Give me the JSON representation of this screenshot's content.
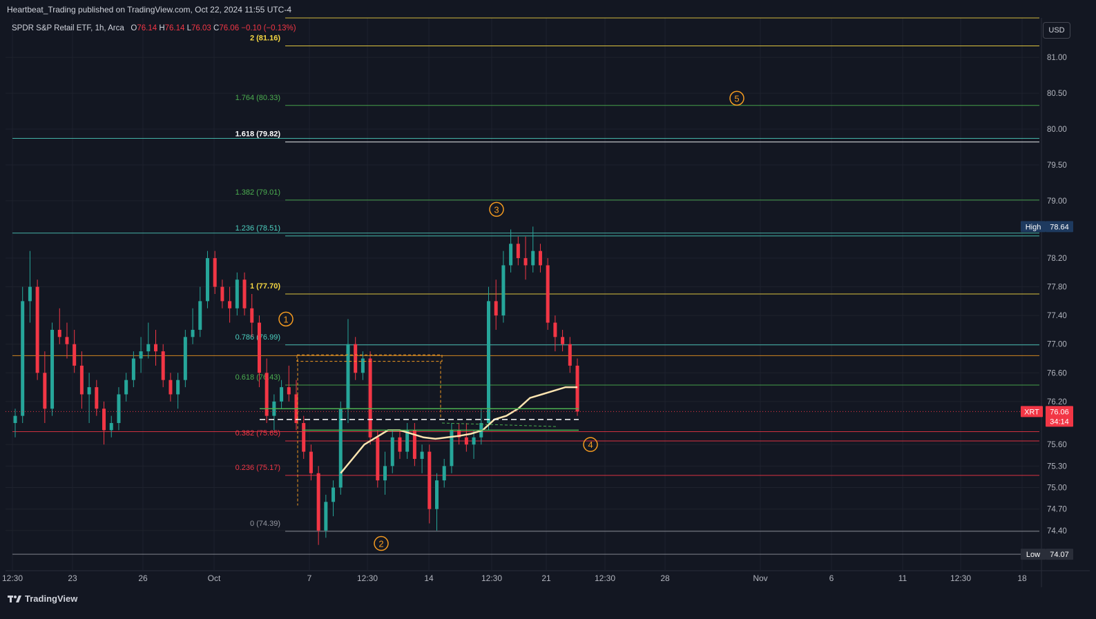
{
  "publication": "Heartbeat_Trading published on TradingView.com, Oct 22, 2024 11:55 UTC-4",
  "legend": {
    "symbol": "SPDR S&P Retail ETF, 1h, Arca",
    "o_label": "O",
    "o_value": "76.14",
    "h_label": "H",
    "h_value": "76.14",
    "l_label": "L",
    "l_value": "76.03",
    "c_label": "C",
    "c_value": "76.06",
    "change": "−0.10 (−0.13%)"
  },
  "currency_button": "USD",
  "footer_brand": "TradingView",
  "colors": {
    "background": "#131722",
    "up": "#26a69a",
    "down": "#f23645",
    "fib_yellow": "#f5d742",
    "fib_green": "#4caf50",
    "fib_teal": "#4dd0c0",
    "fib_red": "#f23645",
    "wave_orange": "#f59b20",
    "ma_cream": "#fce4b0"
  },
  "chart_data": {
    "type": "candlestick",
    "symbol": "XRT",
    "timeframe": "1h",
    "ylim": [
      73.85,
      81.55
    ],
    "y_ticks": [
      "81.00",
      "80.50",
      "80.00",
      "79.50",
      "79.00",
      "78.20",
      "77.80",
      "77.40",
      "77.00",
      "76.60",
      "76.20",
      "75.60",
      "75.30",
      "75.00",
      "74.70",
      "74.40"
    ],
    "x_ticks": [
      "12:30",
      "23",
      "26",
      "Oct",
      "7",
      "12:30",
      "14",
      "12:30",
      "21",
      "12:30",
      "28",
      "Nov",
      "6",
      "11",
      "12:30",
      "18"
    ],
    "fib_levels": [
      {
        "label": "2 (81.16)",
        "value": 81.16,
        "color": "#f5d742",
        "bold": true
      },
      {
        "label": "1.764 (80.33)",
        "value": 80.33,
        "color": "#4caf50",
        "bold": false
      },
      {
        "label": "1.618 (79.82)",
        "value": 79.82,
        "color": "#ffffff",
        "bold": true
      },
      {
        "label": "1.382 (79.01)",
        "value": 79.01,
        "color": "#4caf50",
        "bold": false
      },
      {
        "label": "1.236 (78.51)",
        "value": 78.51,
        "color": "#4dd0c0",
        "bold": false
      },
      {
        "label": "1 (77.70)",
        "value": 77.7,
        "color": "#f5d742",
        "bold": true
      },
      {
        "label": "0.786 (76.99)",
        "value": 76.99,
        "color": "#4dd0c0",
        "bold": false
      },
      {
        "label": "0.618 (76.43)",
        "value": 76.43,
        "color": "#4caf50",
        "bold": false
      },
      {
        "label": "0.382 (75.65)",
        "value": 75.65,
        "color": "#f23645",
        "bold": false
      },
      {
        "label": "0.236 (75.17)",
        "value": 75.17,
        "color": "#f23645",
        "bold": false
      },
      {
        "label": "0 (74.39)",
        "value": 74.39,
        "color": "#9598a1",
        "bold": false
      }
    ],
    "horizontal_lines": [
      {
        "value": 81.55,
        "color": "#f5d742"
      },
      {
        "value": 79.87,
        "color": "#4dd0c0"
      },
      {
        "value": 78.55,
        "color": "#4dd0c0"
      },
      {
        "value": 76.84,
        "color": "#f59b20"
      },
      {
        "value": 75.78,
        "color": "#f23645"
      },
      {
        "value": 74.07,
        "color": "#9598a1"
      }
    ],
    "wave_labels": [
      "1",
      "2",
      "3",
      "4",
      "5"
    ],
    "wave_points": [
      {
        "label": "1",
        "value": 77.35
      },
      {
        "label": "2",
        "value": 74.22
      },
      {
        "label": "3",
        "value": 78.88
      },
      {
        "label": "4",
        "value": 75.6
      },
      {
        "label": "5",
        "value": 80.43
      }
    ],
    "high_label": "High",
    "high_value": "78.64",
    "low_label": "Low",
    "low_value": "74.07",
    "last_symbol": "XRT",
    "last_value": "76.06",
    "last_timer": "34:14",
    "candles": [
      [
        75.9,
        76.1,
        75.7,
        76.0
      ],
      [
        76.0,
        77.8,
        75.9,
        77.6
      ],
      [
        77.6,
        78.3,
        77.3,
        77.8
      ],
      [
        77.8,
        77.9,
        76.5,
        76.6
      ],
      [
        76.6,
        76.9,
        75.9,
        76.1
      ],
      [
        76.1,
        77.3,
        76.0,
        77.2
      ],
      [
        77.2,
        77.5,
        77.0,
        77.1
      ],
      [
        77.1,
        77.3,
        76.8,
        77.0
      ],
      [
        77.0,
        77.2,
        76.6,
        76.7
      ],
      [
        76.7,
        76.9,
        76.1,
        76.3
      ],
      [
        76.3,
        76.6,
        75.9,
        76.4
      ],
      [
        76.4,
        76.5,
        76.0,
        76.1
      ],
      [
        76.1,
        76.2,
        75.6,
        75.8
      ],
      [
        75.8,
        76.0,
        75.7,
        75.9
      ],
      [
        75.9,
        76.4,
        75.8,
        76.3
      ],
      [
        76.3,
        76.6,
        76.2,
        76.5
      ],
      [
        76.5,
        76.9,
        76.4,
        76.8
      ],
      [
        76.8,
        77.1,
        76.6,
        76.9
      ],
      [
        76.9,
        77.3,
        76.8,
        77.0
      ],
      [
        77.0,
        77.2,
        76.7,
        76.9
      ],
      [
        76.9,
        77.0,
        76.4,
        76.5
      ],
      [
        76.5,
        76.6,
        76.2,
        76.3
      ],
      [
        76.3,
        76.6,
        76.1,
        76.5
      ],
      [
        76.5,
        77.2,
        76.4,
        77.1
      ],
      [
        77.1,
        77.5,
        77.0,
        77.2
      ],
      [
        77.2,
        77.8,
        77.1,
        77.6
      ],
      [
        77.6,
        78.3,
        77.5,
        78.2
      ],
      [
        78.2,
        78.3,
        77.7,
        77.8
      ],
      [
        77.8,
        77.9,
        77.5,
        77.6
      ],
      [
        77.6,
        77.8,
        77.3,
        77.5
      ],
      [
        77.5,
        78.0,
        77.4,
        77.9
      ],
      [
        77.9,
        78.0,
        77.4,
        77.5
      ],
      [
        77.5,
        77.7,
        77.1,
        77.3
      ],
      [
        77.3,
        77.4,
        76.4,
        76.6
      ],
      [
        76.6,
        76.8,
        75.9,
        76.0
      ],
      [
        76.0,
        76.3,
        75.8,
        76.2
      ],
      [
        76.2,
        76.5,
        76.1,
        76.4
      ],
      [
        76.4,
        76.7,
        76.2,
        76.3
      ],
      [
        76.3,
        76.5,
        75.8,
        75.9
      ],
      [
        75.9,
        76.0,
        75.4,
        75.5
      ],
      [
        75.5,
        75.6,
        75.1,
        75.2
      ],
      [
        75.2,
        75.3,
        74.2,
        74.4
      ],
      [
        74.4,
        74.9,
        74.3,
        74.8
      ],
      [
        74.8,
        75.1,
        74.6,
        75.0
      ],
      [
        75.0,
        76.2,
        74.9,
        76.1
      ],
      [
        76.1,
        77.35,
        75.9,
        77.0
      ],
      [
        77.0,
        77.1,
        76.5,
        76.6
      ],
      [
        76.6,
        76.9,
        76.5,
        76.8
      ],
      [
        76.8,
        76.9,
        75.6,
        75.7
      ],
      [
        75.7,
        75.8,
        75.0,
        75.1
      ],
      [
        75.1,
        75.5,
        74.9,
        75.3
      ],
      [
        75.3,
        75.8,
        75.2,
        75.7
      ],
      [
        75.7,
        75.8,
        75.4,
        75.5
      ],
      [
        75.5,
        75.9,
        75.4,
        75.8
      ],
      [
        75.8,
        75.9,
        75.3,
        75.4
      ],
      [
        75.4,
        75.6,
        75.2,
        75.5
      ],
      [
        75.5,
        75.6,
        74.5,
        74.7
      ],
      [
        74.7,
        75.2,
        74.4,
        75.1
      ],
      [
        75.1,
        75.4,
        75.0,
        75.3
      ],
      [
        75.3,
        75.9,
        75.2,
        75.8
      ],
      [
        75.8,
        75.9,
        75.6,
        75.7
      ],
      [
        75.7,
        75.9,
        75.5,
        75.6
      ],
      [
        75.6,
        75.8,
        75.4,
        75.7
      ],
      [
        75.7,
        76.1,
        75.6,
        75.9
      ],
      [
        75.9,
        77.8,
        75.8,
        77.6
      ],
      [
        77.6,
        77.9,
        77.2,
        77.4
      ],
      [
        77.4,
        78.3,
        77.3,
        78.1
      ],
      [
        78.1,
        78.6,
        78.0,
        78.4
      ],
      [
        78.4,
        78.5,
        78.1,
        78.2
      ],
      [
        78.2,
        78.5,
        77.9,
        78.1
      ],
      [
        78.1,
        78.64,
        78.0,
        78.3
      ],
      [
        78.3,
        78.4,
        78.0,
        78.1
      ],
      [
        78.1,
        78.2,
        77.2,
        77.3
      ],
      [
        77.3,
        77.4,
        76.9,
        77.1
      ],
      [
        77.1,
        77.2,
        76.9,
        77.0
      ],
      [
        77.0,
        77.1,
        76.6,
        76.7
      ],
      [
        76.7,
        76.8,
        76.0,
        76.06
      ]
    ],
    "ma": [
      75.2,
      75.4,
      75.6,
      75.7,
      75.8,
      75.8,
      75.75,
      75.7,
      75.68,
      75.7,
      75.72,
      75.75,
      75.8,
      75.95,
      76.0,
      76.1,
      76.25,
      76.3,
      76.35,
      76.4,
      76.4
    ],
    "title": "",
    "xlabel": "",
    "ylabel": ""
  }
}
